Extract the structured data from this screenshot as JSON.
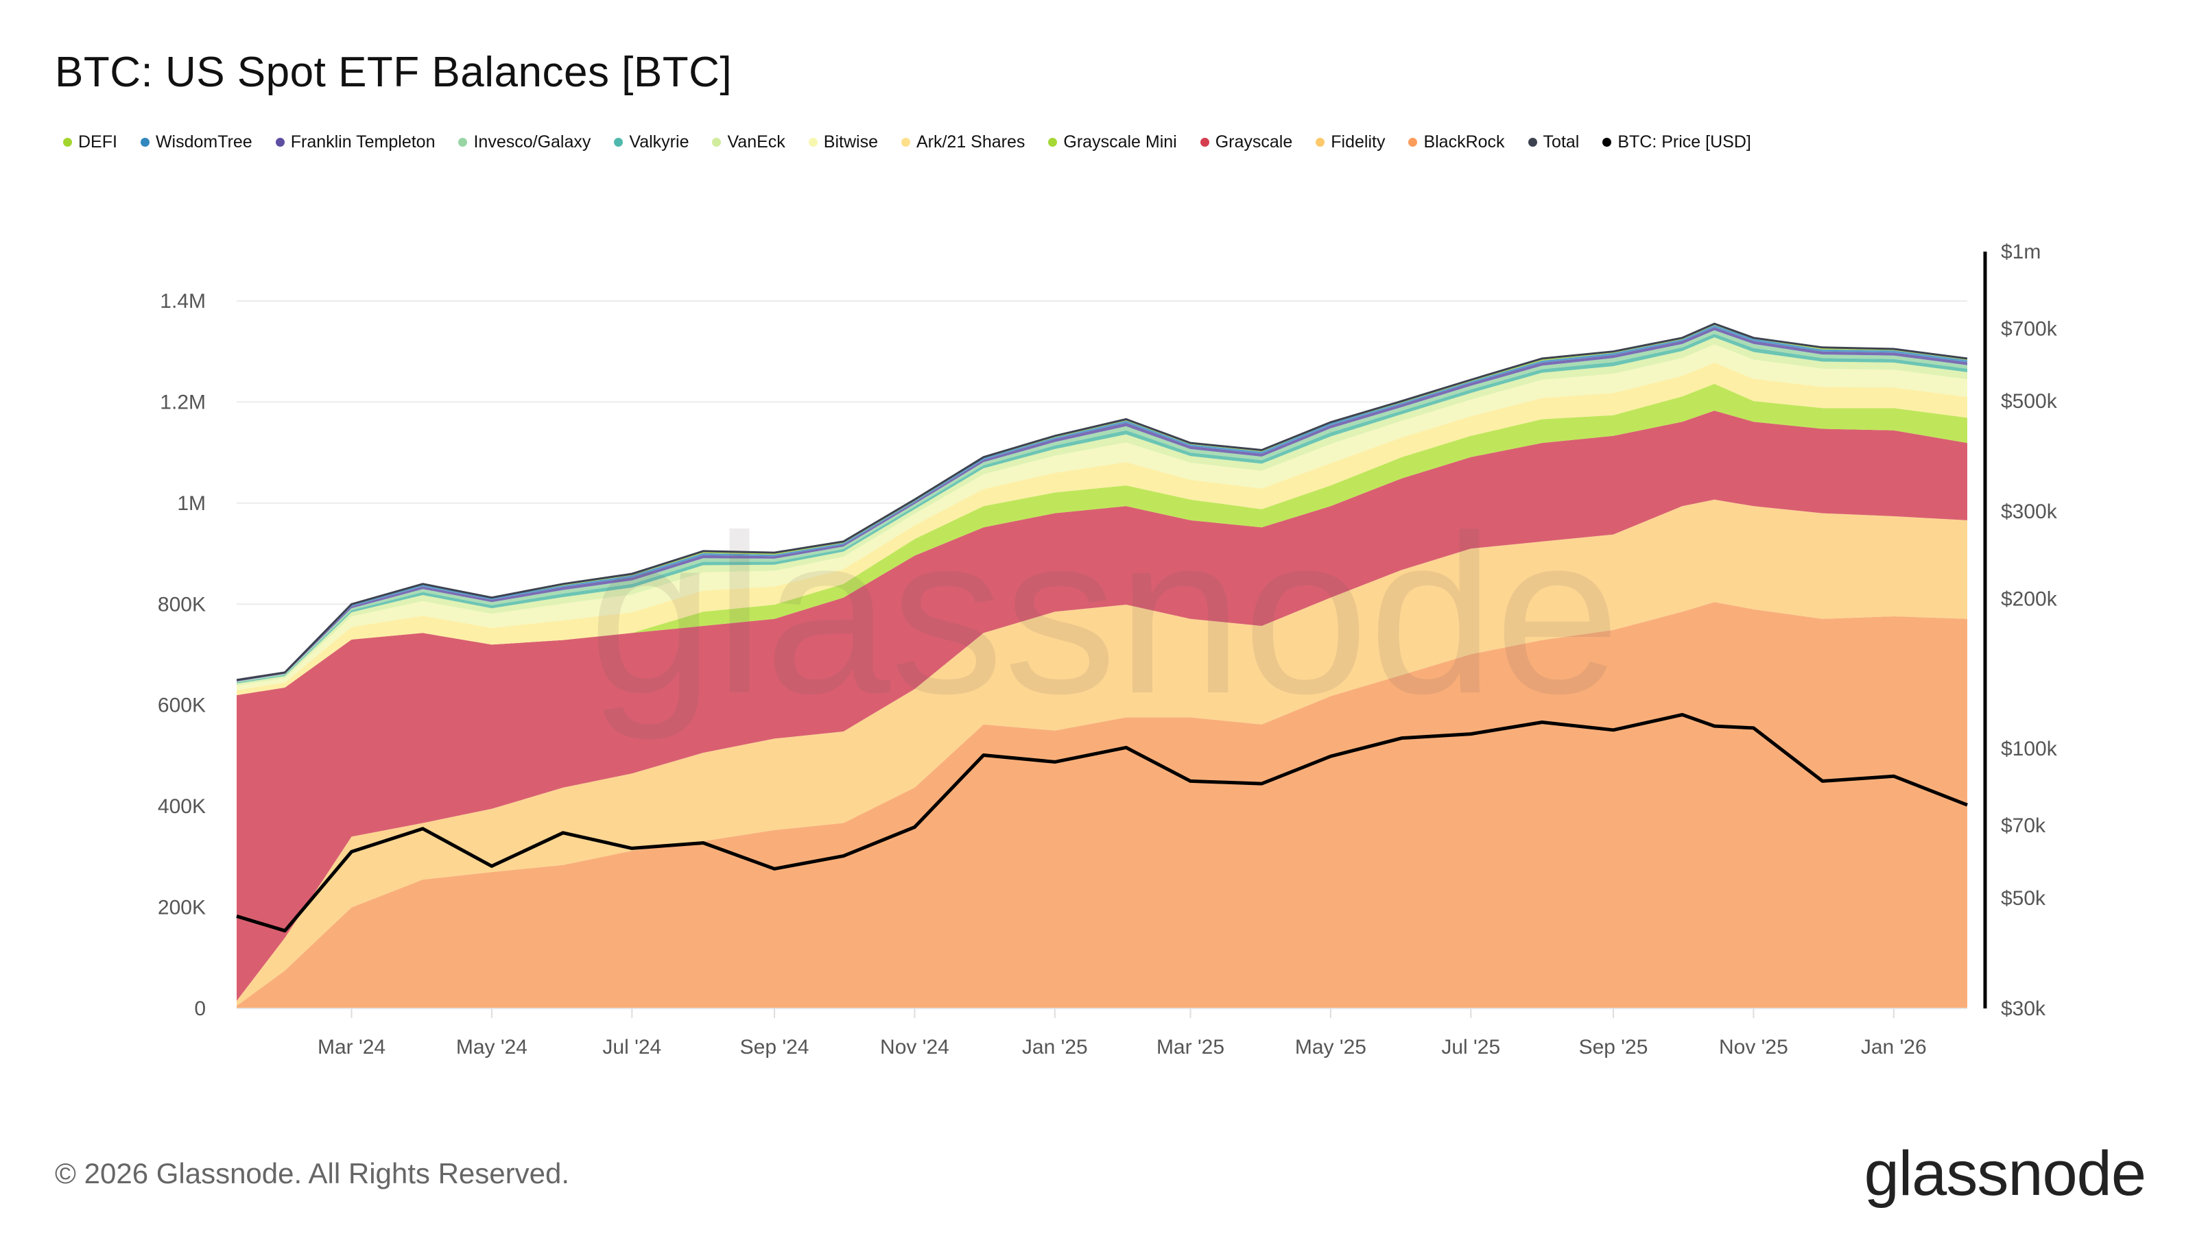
{
  "title": "BTC: US Spot ETF Balances [BTC]",
  "legend": [
    {
      "name": "DEFI",
      "color": "#a3d52f"
    },
    {
      "name": "WisdomTree",
      "color": "#3288bd"
    },
    {
      "name": "Franklin Templeton",
      "color": "#5e4fa2"
    },
    {
      "name": "Invesco/Galaxy",
      "color": "#99d5a4"
    },
    {
      "name": "Valkyrie",
      "color": "#4fb9ad"
    },
    {
      "name": "VanEck",
      "color": "#d1ec9c"
    },
    {
      "name": "Bitwise",
      "color": "#f7f7b0"
    },
    {
      "name": "Ark/21 Shares",
      "color": "#fee08b"
    },
    {
      "name": "Grayscale Mini",
      "color": "#a6d836"
    },
    {
      "name": "Grayscale",
      "color": "#d53e4f"
    },
    {
      "name": "Fidelity",
      "color": "#fdc96b"
    },
    {
      "name": "BlackRock",
      "color": "#fd9d5c"
    },
    {
      "name": "Total",
      "color": "#3d4250"
    },
    {
      "name": "BTC: Price [USD]",
      "color": "#000000"
    }
  ],
  "footer": "© 2026 Glassnode. All Rights Reserved.",
  "logo": "glassnode",
  "watermark": "glassnode",
  "chart_data": {
    "type": "area",
    "stacked": true,
    "title": "BTC: US Spot ETF Balances [BTC]",
    "x": [
      "2024-01-11",
      "2024-02-01",
      "2024-03-01",
      "2024-04-01",
      "2024-05-01",
      "2024-06-01",
      "2024-07-01",
      "2024-08-01",
      "2024-09-01",
      "2024-10-01",
      "2024-11-01",
      "2024-12-01",
      "2025-01-01",
      "2025-02-01",
      "2025-03-01",
      "2025-04-01",
      "2025-05-01",
      "2025-06-01",
      "2025-07-01",
      "2025-08-01",
      "2025-09-01",
      "2025-10-01",
      "2025-10-15",
      "2025-11-01",
      "2025-12-01",
      "2026-01-01",
      "2026-02-02"
    ],
    "x_ticks": [
      {
        "date": "2024-03-01",
        "label": "Mar '24"
      },
      {
        "date": "2024-05-01",
        "label": "May '24"
      },
      {
        "date": "2024-07-01",
        "label": "Jul '24"
      },
      {
        "date": "2024-09-01",
        "label": "Sep '24"
      },
      {
        "date": "2024-11-01",
        "label": "Nov '24"
      },
      {
        "date": "2025-01-01",
        "label": "Jan '25"
      },
      {
        "date": "2025-03-01",
        "label": "Mar '25"
      },
      {
        "date": "2025-05-01",
        "label": "May '25"
      },
      {
        "date": "2025-07-01",
        "label": "Jul '25"
      },
      {
        "date": "2025-09-01",
        "label": "Sep '25"
      },
      {
        "date": "2025-11-01",
        "label": "Nov '25"
      },
      {
        "date": "2026-01-01",
        "label": "Jan '26"
      }
    ],
    "x_range": [
      "2024-01-11",
      "2026-02-02"
    ],
    "y_left": {
      "range": [
        0,
        1400000
      ],
      "scale": "linear",
      "ticks": [
        {
          "value": 0,
          "label": "0"
        },
        {
          "value": 200000,
          "label": "200K"
        },
        {
          "value": 400000,
          "label": "400K"
        },
        {
          "value": 600000,
          "label": "600K"
        },
        {
          "value": 800000,
          "label": "800K"
        },
        {
          "value": 1000000,
          "label": "1M"
        },
        {
          "value": 1200000,
          "label": "1.2M"
        },
        {
          "value": 1400000,
          "label": "1.4M"
        }
      ]
    },
    "y_right": {
      "range": [
        30000,
        1000000
      ],
      "scale": "log",
      "ticks": [
        {
          "value": 30000,
          "label": "$30k"
        },
        {
          "value": 50000,
          "label": "$50k"
        },
        {
          "value": 70000,
          "label": "$70k"
        },
        {
          "value": 100000,
          "label": "$100k"
        },
        {
          "value": 200000,
          "label": "$200k"
        },
        {
          "value": 300000,
          "label": "$300k"
        },
        {
          "value": 500000,
          "label": "$500k"
        },
        {
          "value": 700000,
          "label": "$700k"
        },
        {
          "value": 1000000,
          "label": "$1m"
        }
      ]
    },
    "grid": true,
    "legend_position": "top-left",
    "unit": "thousand BTC (stack), USD (price)",
    "series": [
      {
        "name": "BlackRock",
        "fill": "#f9ae79",
        "values": [
          5,
          75,
          200,
          255,
          270,
          284,
          312,
          331,
          353,
          367,
          437,
          562,
          550,
          576,
          576,
          562,
          618,
          660,
          701,
          729,
          749,
          785,
          804,
          790,
          771,
          776,
          771
        ]
      },
      {
        "name": "Fidelity",
        "fill": "#fdd692",
        "values": [
          10,
          65,
          140,
          112,
          125,
          153,
          153,
          175,
          181,
          181,
          195,
          181,
          235,
          223,
          195,
          195,
          195,
          208,
          209,
          195,
          189,
          209,
          203,
          204,
          209,
          198,
          195
        ]
      },
      {
        "name": "Grayscale",
        "fill": "#d95f70",
        "values": [
          605,
          495,
          390,
          376,
          325,
          292,
          278,
          251,
          237,
          265,
          264,
          209,
          195,
          195,
          195,
          195,
          181,
          181,
          181,
          195,
          195,
          167,
          176,
          167,
          167,
          170,
          153
        ]
      },
      {
        "name": "Grayscale Mini",
        "fill": "#bfe65a",
        "values": [
          0,
          0,
          0,
          0,
          0,
          0,
          0,
          28,
          28,
          27,
          33,
          42,
          41,
          41,
          41,
          36,
          41,
          42,
          42,
          47,
          41,
          50,
          53,
          41,
          41,
          44,
          50
        ]
      },
      {
        "name": "Ark/21 Shares",
        "fill": "#fdefa6",
        "values": [
          10,
          10,
          25,
          34,
          33,
          39,
          41,
          42,
          36,
          29,
          27,
          34,
          39,
          46,
          39,
          41,
          44,
          39,
          39,
          42,
          44,
          41,
          42,
          44,
          42,
          41,
          41
        ]
      },
      {
        "name": "Bitwise",
        "fill": "#f5f8c2",
        "values": [
          9,
          9,
          21,
          29,
          28,
          33,
          35,
          36,
          31,
          25,
          23,
          29,
          34,
          39,
          34,
          35,
          38,
          33,
          33,
          36,
          38,
          35,
          36,
          38,
          36,
          35,
          35
        ]
      },
      {
        "name": "VanEck",
        "fill": "#e0f2b4",
        "values": [
          4,
          4,
          8,
          12,
          11,
          13,
          14,
          14,
          12,
          10,
          9,
          12,
          13,
          16,
          13,
          14,
          15,
          13,
          13,
          14,
          15,
          14,
          14,
          15,
          14,
          14,
          14
        ]
      },
      {
        "name": "Valkyrie",
        "fill": "#6cc5b4",
        "values": [
          2,
          2,
          4,
          6,
          6,
          7,
          7,
          7,
          6,
          5,
          5,
          6,
          7,
          8,
          7,
          7,
          8,
          7,
          7,
          7,
          8,
          7,
          7,
          8,
          7,
          7,
          7
        ]
      },
      {
        "name": "Invesco/Galaxy",
        "fill": "#a9dcb4",
        "values": [
          2,
          2,
          4,
          6,
          6,
          7,
          7,
          7,
          6,
          5,
          5,
          6,
          7,
          8,
          7,
          7,
          8,
          7,
          7,
          7,
          8,
          7,
          7,
          8,
          7,
          7,
          7
        ]
      },
      {
        "name": "Franklin Templeton",
        "fill": "#7a6db5",
        "values": [
          2,
          2,
          4,
          5,
          5,
          6,
          6,
          6,
          5,
          4,
          4,
          5,
          6,
          7,
          6,
          6,
          6,
          6,
          6,
          6,
          6,
          6,
          6,
          6,
          6,
          6,
          6
        ]
      },
      {
        "name": "WisdomTree",
        "fill": "#5a9fcc",
        "values": [
          1,
          1,
          2,
          3,
          3,
          3,
          4,
          4,
          3,
          3,
          2,
          3,
          3,
          4,
          3,
          4,
          4,
          3,
          3,
          4,
          4,
          3,
          4,
          4,
          4,
          4,
          4
        ]
      },
      {
        "name": "DEFI",
        "fill": "#b3dc55",
        "values": [
          0,
          0,
          2,
          2,
          1,
          3,
          3,
          4,
          4,
          3,
          3,
          2,
          3,
          3,
          3,
          3,
          2,
          3,
          3,
          4,
          3,
          3,
          3,
          2,
          4,
          3,
          3
        ]
      }
    ],
    "total": {
      "name": "Total",
      "values": [
        650,
        665,
        800,
        840,
        813,
        840,
        860,
        905,
        902,
        924,
        1007,
        1091,
        1133,
        1166,
        1119,
        1105,
        1160,
        1202,
        1244,
        1286,
        1300,
        1327,
        1355,
        1327,
        1308,
        1305,
        1286
      ]
    },
    "price": {
      "name": "BTC: Price [USD]",
      "values": [
        46000,
        43000,
        62000,
        69000,
        58000,
        67700,
        63000,
        64600,
        57300,
        60800,
        69500,
        97000,
        94000,
        100500,
        86000,
        85000,
        96500,
        105000,
        107000,
        113000,
        109000,
        117000,
        111000,
        110000,
        86000,
        88000,
        77000
      ]
    }
  }
}
